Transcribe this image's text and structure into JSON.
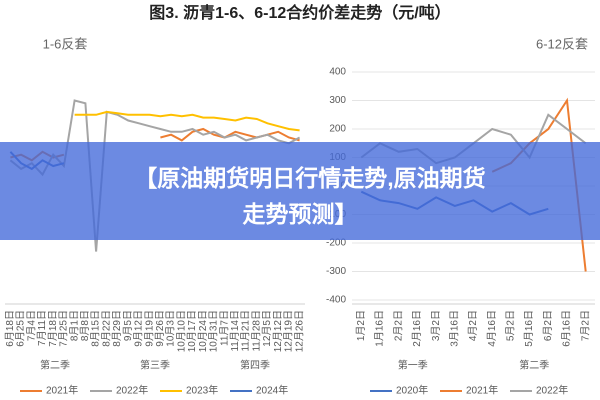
{
  "title": "图3. 沥青1-6、6-12合约价差走势（元/吨）",
  "banner": {
    "lines": [
      "【原油期货明日行情走势,原油期货",
      "走势预测】"
    ]
  },
  "chart_data": [
    {
      "type": "line",
      "title": "1-6反套",
      "categories": [
        "6月18日",
        "6月25日",
        "7月4日",
        "7月11日",
        "7月18日",
        "7月25日",
        "8月1日",
        "8月8日",
        "8月15日",
        "8月22日",
        "8月29日",
        "9月5日",
        "9月12日",
        "9月19日",
        "9月26日",
        "10月3日",
        "10月10日",
        "10月17日",
        "10月24日",
        "10月31日",
        "11月7日",
        "11月14日",
        "11月21日",
        "11月28日",
        "12月5日",
        "12月12日",
        "12月19日",
        "12月26日"
      ],
      "sections": [
        "第二季",
        "第三季",
        "第四季"
      ],
      "ylim": [
        -400,
        400
      ],
      "series": [
        {
          "name": "2021年",
          "color": "#ed7d31",
          "values": [
            100,
            110,
            90,
            120,
            100,
            110,
            null,
            null,
            null,
            null,
            null,
            null,
            null,
            null,
            170,
            180,
            160,
            190,
            200,
            180,
            170,
            190,
            180,
            170,
            180,
            190,
            170,
            160
          ]
        },
        {
          "name": "2022年",
          "color": "#a5a5a5",
          "values": [
            90,
            60,
            80,
            40,
            110,
            70,
            300,
            290,
            -230,
            260,
            250,
            230,
            220,
            210,
            200,
            190,
            190,
            200,
            180,
            190,
            170,
            180,
            160,
            170,
            180,
            160,
            150,
            170
          ]
        },
        {
          "name": "2023年",
          "color": "#ffc000",
          "values": [
            null,
            null,
            null,
            null,
            null,
            null,
            250,
            250,
            250,
            260,
            255,
            250,
            250,
            250,
            245,
            250,
            245,
            250,
            240,
            240,
            235,
            230,
            240,
            235,
            220,
            210,
            200,
            195
          ]
        },
        {
          "name": "2024年",
          "color": "#4472c4",
          "values": [
            120,
            80,
            60,
            90,
            70,
            80,
            null,
            null,
            null,
            null,
            null,
            null,
            null,
            null,
            null,
            null,
            null,
            null,
            null,
            null,
            null,
            null,
            null,
            null,
            null,
            null,
            null,
            null
          ]
        }
      ]
    },
    {
      "type": "line",
      "title": "6-12反套",
      "categories": [
        "1月2日",
        "1月16日",
        "2月2日",
        "2月16日",
        "3月2日",
        "3月16日",
        "4月2日",
        "4月16日",
        "5月2日",
        "5月16日",
        "6月2日",
        "6月16日",
        "7月2日"
      ],
      "sections": [
        "第一季",
        "第二季"
      ],
      "ylim": [
        -400,
        400
      ],
      "yticks": [
        400,
        300,
        200,
        100,
        0,
        -100,
        -200,
        -300,
        -400
      ],
      "grid": true,
      "series": [
        {
          "name": "2020年",
          "color": "#4472c4",
          "values": [
            -20,
            -50,
            -60,
            -80,
            -40,
            -70,
            -50,
            -90,
            -60,
            -100,
            -80,
            null,
            null
          ]
        },
        {
          "name": "2021年",
          "color": "#ed7d31",
          "values": [
            null,
            null,
            null,
            null,
            null,
            null,
            null,
            50,
            80,
            150,
            200,
            300,
            -300
          ]
        },
        {
          "name": "2022年",
          "color": "#a5a5a5",
          "values": [
            100,
            150,
            120,
            130,
            80,
            100,
            150,
            200,
            180,
            100,
            250,
            200,
            150
          ]
        }
      ]
    }
  ]
}
